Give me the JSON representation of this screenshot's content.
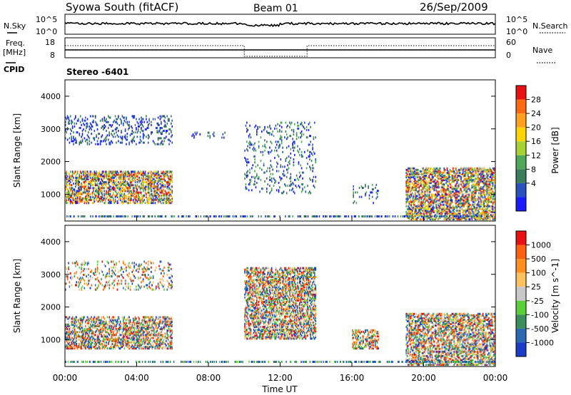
{
  "header": {
    "station": "Syowa South (fitACF)",
    "beam": "Beam 01",
    "date": "26/Sep/2009"
  },
  "noise_panel": {
    "left_label": "N.Sky",
    "right_label": "N.Search",
    "left_ticks": [
      "10^5",
      "10^0"
    ],
    "right_ticks": [
      "10^5",
      "10^0"
    ]
  },
  "freq_panel": {
    "left_label": "Freq.",
    "left_unit": "[MHz]",
    "right_label": "Nave",
    "left_ticks": [
      "18",
      "8"
    ],
    "right_ticks": [
      "60",
      "0"
    ]
  },
  "cpid": {
    "label": "CPID",
    "value": "Stereo -6401"
  },
  "chart_data": [
    {
      "type": "heatmap",
      "name": "power",
      "ylabel": "Slant Range [km]",
      "yticks": [
        1000,
        2000,
        3000,
        4000
      ],
      "ylim": [
        180,
        4500
      ],
      "xlim": [
        0,
        24
      ],
      "colorbar_label": "Power [dB]",
      "colorbar_ticks": [
        "28",
        "24",
        "20",
        "16",
        "12",
        "8",
        "4"
      ],
      "colors": [
        "#1a1aff",
        "#2a52be",
        "#3a7d5c",
        "#4ea857",
        "#a8d232",
        "#ffd400",
        "#ffa020",
        "#ff6a10",
        "#e81010"
      ],
      "regions": [
        {
          "t": [
            0.0,
            6.0
          ],
          "r": [
            700,
            1700
          ],
          "level": "high"
        },
        {
          "t": [
            0.0,
            6.0
          ],
          "r": [
            2500,
            3400
          ],
          "level": "low"
        },
        {
          "t": [
            7.0,
            9.0
          ],
          "r": [
            2700,
            2900
          ],
          "level": "low"
        },
        {
          "t": [
            10.0,
            14.0
          ],
          "r": [
            1000,
            3200
          ],
          "level": "mid"
        },
        {
          "t": [
            16.0,
            17.5
          ],
          "r": [
            700,
            1300
          ],
          "level": "mid"
        },
        {
          "t": [
            19.0,
            24.0
          ],
          "r": [
            200,
            1800
          ],
          "level": "high"
        }
      ]
    },
    {
      "type": "heatmap",
      "name": "velocity",
      "ylabel": "Slant Range [km]",
      "yticks": [
        1000,
        2000,
        3000,
        4000
      ],
      "ylim": [
        180,
        4500
      ],
      "xlim": [
        0,
        24
      ],
      "xticks": [
        "00:00",
        "04:00",
        "08:00",
        "12:00",
        "16:00",
        "20:00",
        "00:00"
      ],
      "xlabel": "Time UT",
      "colorbar_label": "Velocity [m s^-1]",
      "colorbar_ticks": [
        "1000",
        "500",
        "100",
        "25",
        "-25",
        "-100",
        "-500",
        "-1000"
      ],
      "colors": [
        "#1a3cc8",
        "#2b6ab0",
        "#3a8f5a",
        "#5bcf3a",
        "#c8c8c8",
        "#ffc060",
        "#ff9020",
        "#ff6010",
        "#e81010"
      ],
      "regions": [
        {
          "t": [
            0.0,
            6.0
          ],
          "r": [
            700,
            1700
          ],
          "level": "mixed"
        },
        {
          "t": [
            0.0,
            6.0
          ],
          "r": [
            2500,
            3400
          ],
          "level": "low"
        },
        {
          "t": [
            10.0,
            14.0
          ],
          "r": [
            1000,
            3200
          ],
          "level": "mixed"
        },
        {
          "t": [
            16.0,
            17.5
          ],
          "r": [
            700,
            1300
          ],
          "level": "neg"
        },
        {
          "t": [
            19.0,
            24.0
          ],
          "r": [
            200,
            1800
          ],
          "level": "neg"
        }
      ]
    }
  ]
}
